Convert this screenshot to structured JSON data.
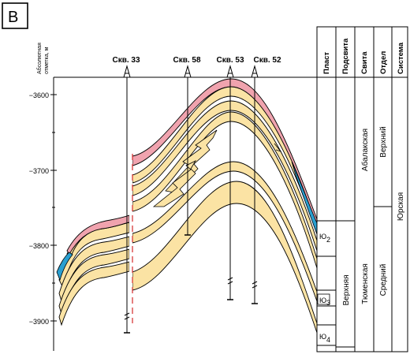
{
  "panel_label": "B",
  "axis": {
    "title_line1": "Абсолютная",
    "title_line2": "отметка, м",
    "ticks": [
      "−3600",
      "−3700",
      "−3800",
      "−3900"
    ]
  },
  "wells": [
    "Скв. 33",
    "Скв. 58",
    "Скв. 53",
    "Скв. 52"
  ],
  "columns": {
    "plast": "Пласт",
    "podsvita": "Подсвита",
    "svita": "Свита",
    "otdel": "Отдел",
    "sistema": "Система"
  },
  "plasts": [
    {
      "base": "Ю",
      "sub": "2"
    },
    {
      "base": "Ю",
      "sub": "3"
    },
    {
      "base": "Ю",
      "sub": "4"
    }
  ],
  "podsvita_value": "Верхняя",
  "svita_values": [
    "Абалакская",
    "Тюменская"
  ],
  "otdel_values": [
    "Верхний",
    "Средний"
  ],
  "sistema_value": "Юрская",
  "colors": {
    "sand": "#fbe3a4",
    "pink": "#f0a3ae",
    "blue": "#2a9fd0",
    "line": "#000000",
    "red_dash": "#d42a2a"
  }
}
